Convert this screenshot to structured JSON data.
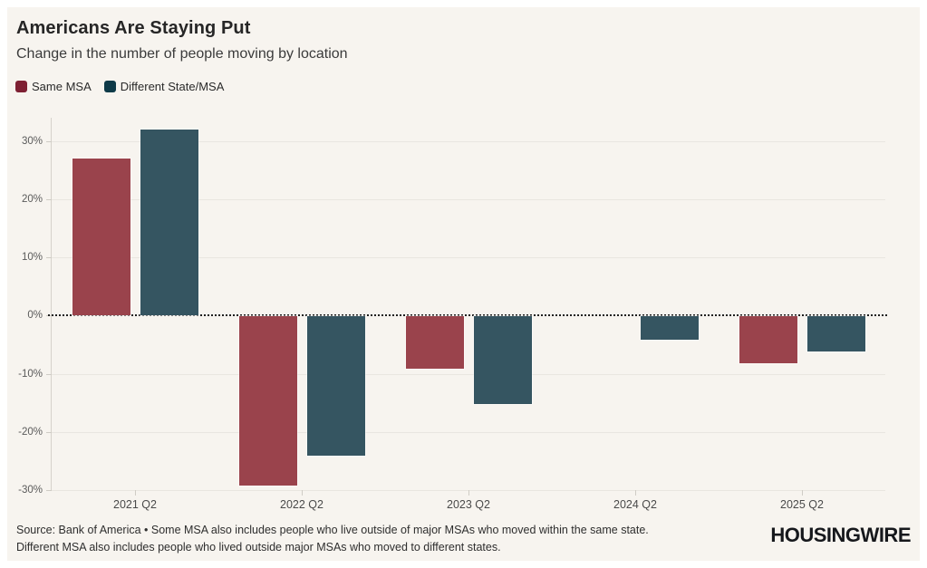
{
  "title": "Americans Are Staying Put",
  "subtitle": "Change in the number of people moving by location",
  "legend": {
    "items": [
      {
        "label": "Same MSA",
        "color": "#7e2033"
      },
      {
        "label": "Different State/MSA",
        "color": "#0e3a48"
      }
    ]
  },
  "chart_data": {
    "type": "bar",
    "title": "Americans Are Staying Put",
    "subtitle": "Change in the number of people moving by location",
    "categories": [
      "2021 Q2",
      "2022 Q2",
      "2023 Q2",
      "2024 Q2",
      "2025 Q2"
    ],
    "series": [
      {
        "name": "Same MSA",
        "color": "#9a434c",
        "values": [
          27,
          -29,
          -9,
          0,
          -8
        ]
      },
      {
        "name": "Different State/MSA",
        "color": "#355561",
        "values": [
          32,
          -24,
          -15,
          -4,
          -6
        ]
      }
    ],
    "unit": "%",
    "xlabel": "",
    "ylabel": "",
    "ylim": [
      -30,
      34
    ],
    "yticks": [
      30,
      20,
      10,
      0,
      -10,
      -20,
      -30
    ],
    "ytick_labels": [
      "30%",
      "20%",
      "10%",
      "0%",
      "-10%",
      "-20%",
      "-30%"
    ],
    "grid": true,
    "zero_line_style": "dotted",
    "legend_position": "top-left"
  },
  "colors": {
    "panel_background": "#f7f4ef",
    "outer_border": "#ffffff",
    "gridline": "#e9e6e0",
    "axis": "#cfccc5",
    "zero_line": "#1f1f1f",
    "bar_same_msa": "#9a434c",
    "bar_different_msa": "#355561"
  },
  "footer": {
    "line1": "Source: Bank of America • Some MSA also includes people who live outside of major MSAs who moved within the same state.",
    "line2": "Different MSA also includes people who lived outside major MSAs who moved to different states.",
    "brand": "HOUSINGWIRE"
  }
}
